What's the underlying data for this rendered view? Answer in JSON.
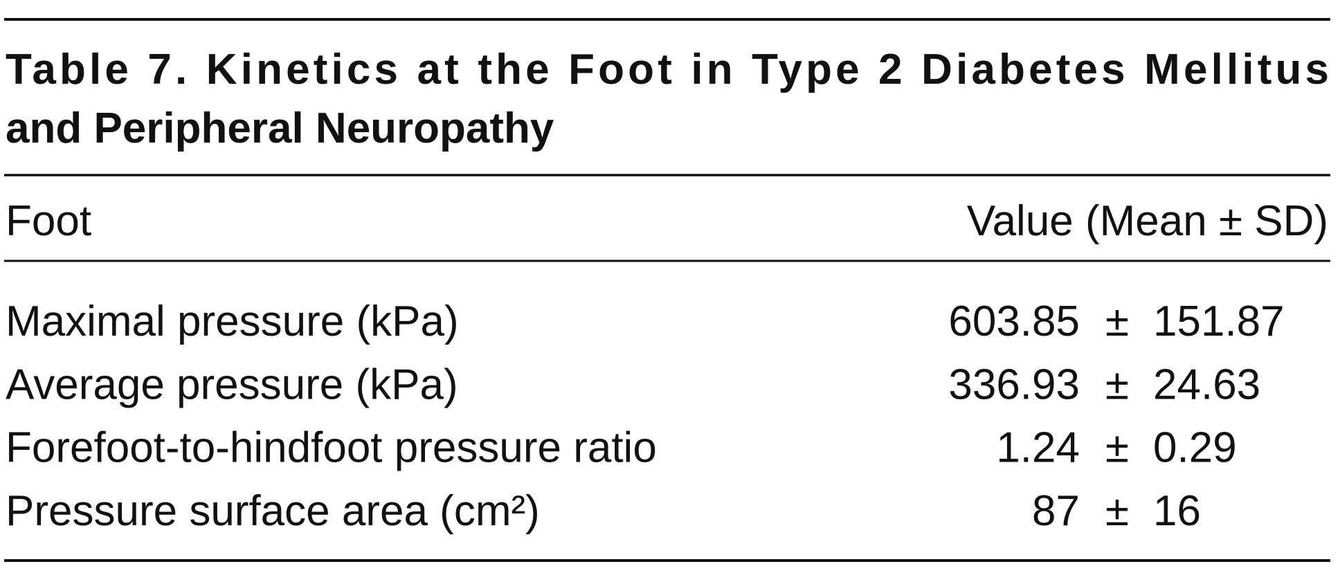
{
  "table": {
    "title_lines": [
      "Table 7. Kinetics at the Foot in Type 2 Diabetes Mellitus",
      "and Peripheral Neuropathy"
    ],
    "header": [
      "Foot",
      "Value (Mean ± SD)"
    ],
    "rows": [
      {
        "label": "Maximal pressure (kPa)",
        "mean": "603.85",
        "pm": "±",
        "sd": "151.87"
      },
      {
        "label": "Average pressure (kPa)",
        "mean": "336.93",
        "pm": "±",
        "sd": "24.63"
      },
      {
        "label": "Forefoot-to-hindfoot pressure ratio",
        "mean": "1.24",
        "pm": "±",
        "sd": "0.29"
      },
      {
        "label": "Pressure surface area (cm²)",
        "mean": "87",
        "pm": "±",
        "sd": "16"
      }
    ]
  }
}
